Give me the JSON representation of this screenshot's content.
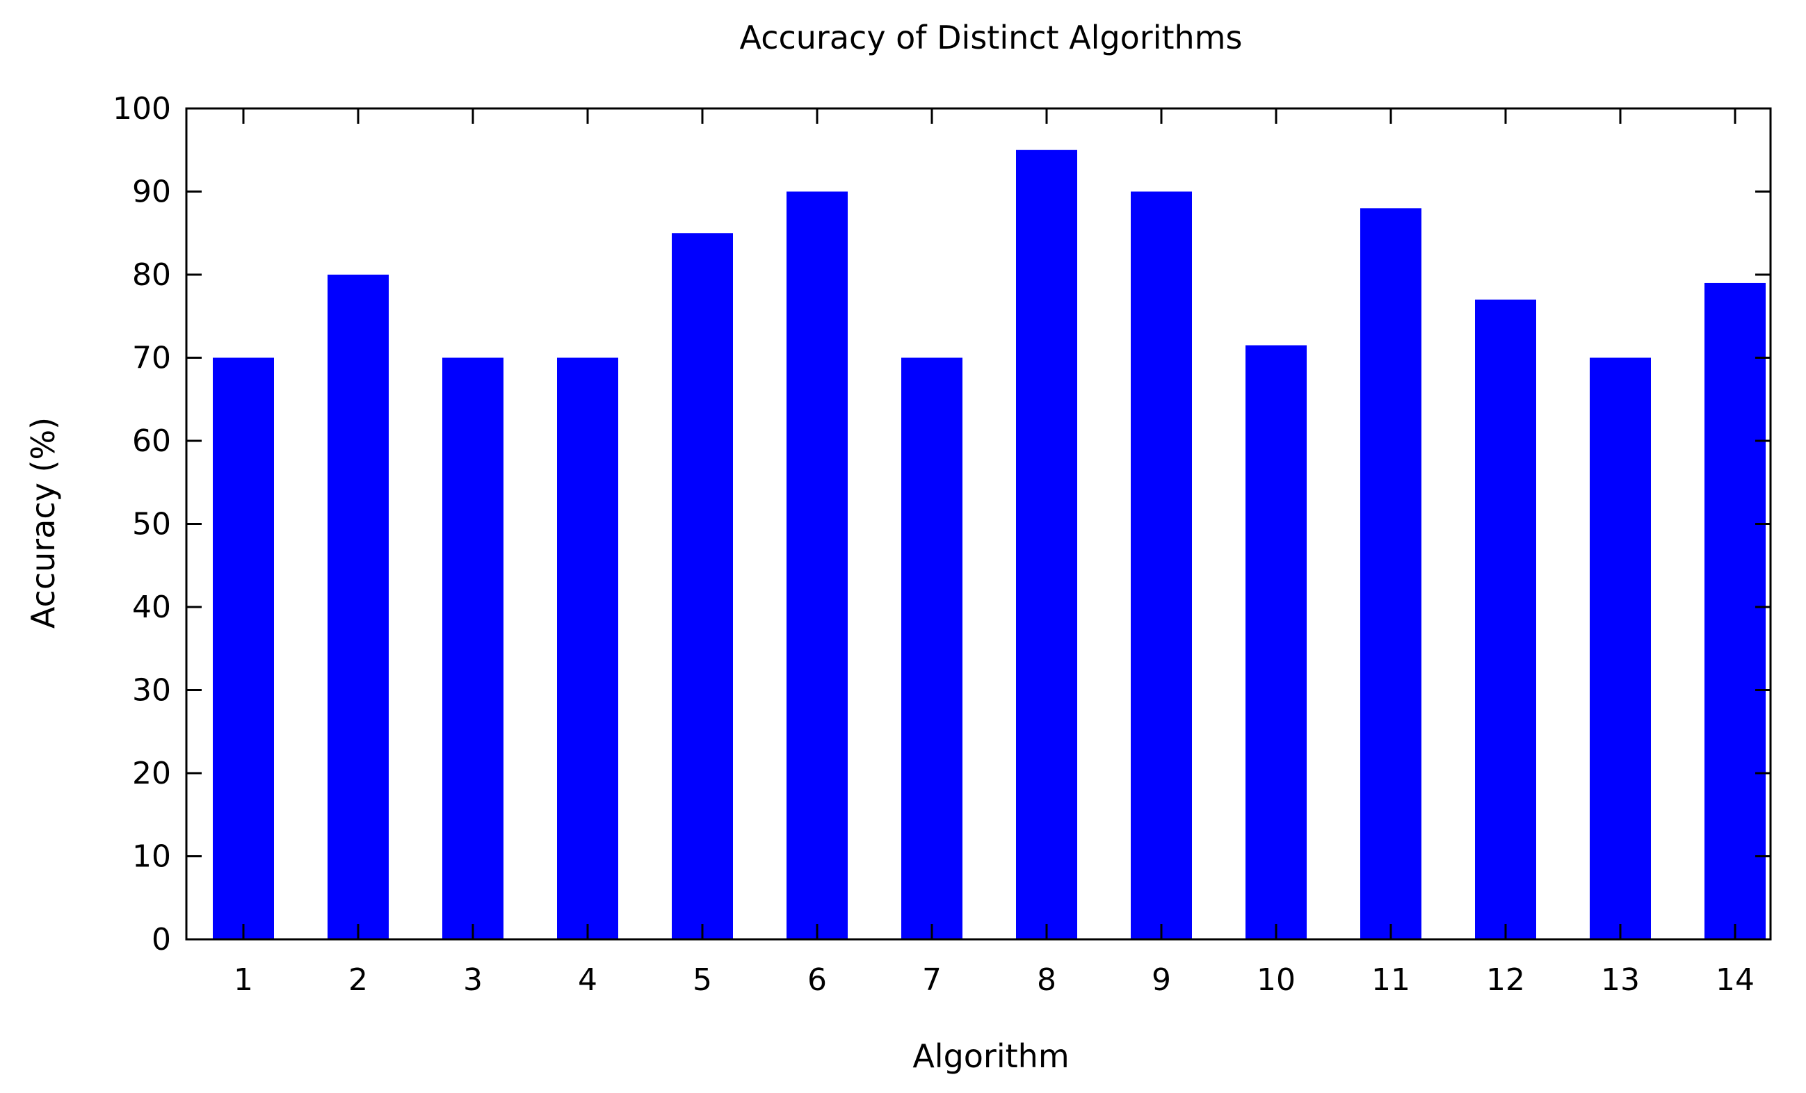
{
  "chart_data": {
    "type": "bar",
    "title": "Accuracy of Distinct Algorithms",
    "xlabel": "Algorithm",
    "ylabel": "Accuracy (%)",
    "categories": [
      "1",
      "2",
      "3",
      "4",
      "5",
      "6",
      "7",
      "8",
      "9",
      "10",
      "11",
      "12",
      "13",
      "14"
    ],
    "values": [
      70,
      80,
      70,
      70,
      85,
      90,
      70,
      95,
      90,
      71.5,
      88,
      77,
      70,
      79
    ],
    "ylim": [
      0,
      100
    ],
    "yticks": [
      "0",
      "10",
      "20",
      "30",
      "40",
      "50",
      "60",
      "70",
      "80",
      "90",
      "100"
    ],
    "bar_color": "#0000ff",
    "grid": false,
    "legend": "none"
  }
}
